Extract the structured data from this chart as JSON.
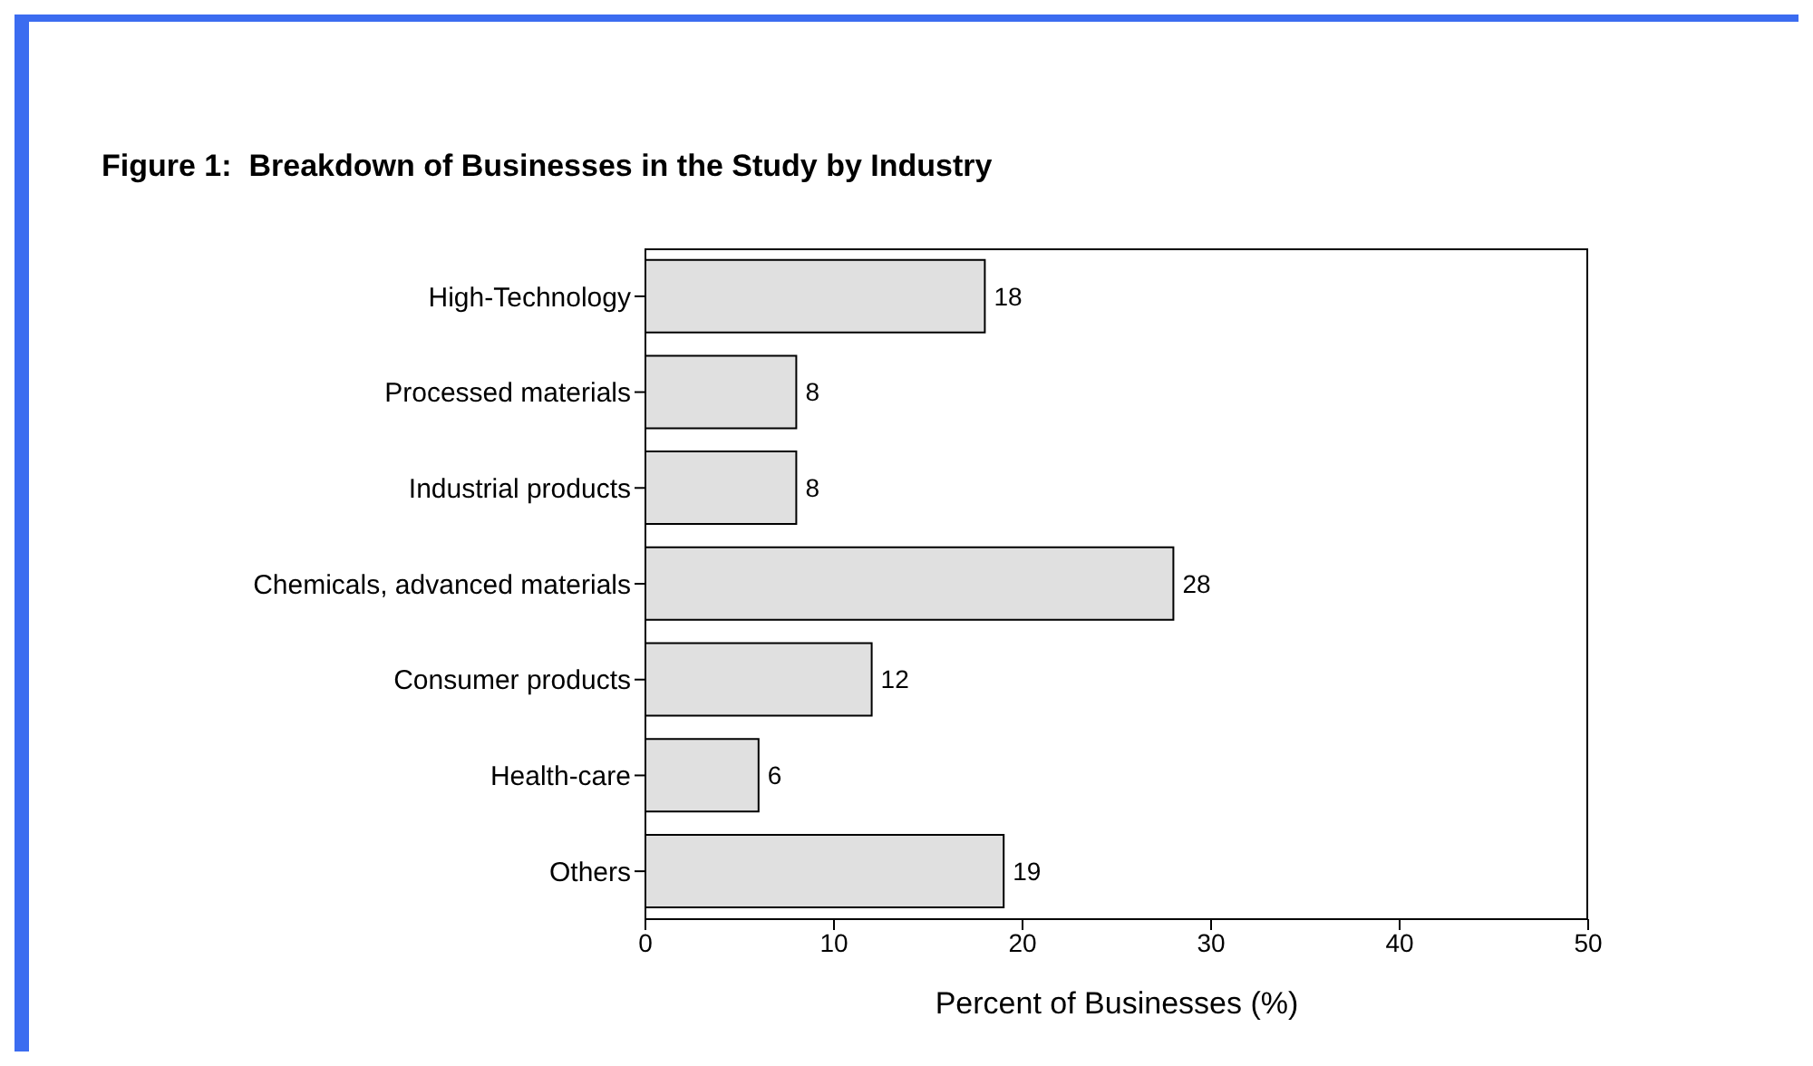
{
  "chart_data": {
    "type": "bar",
    "orientation": "horizontal",
    "title": "Figure 1:  Breakdown of Businesses in the Study by Industry",
    "xlabel": "Percent of Businesses (%)",
    "categories": [
      "High-Technology",
      "Processed materials",
      "Industrial products",
      "Chemicals, advanced materials",
      "Consumer products",
      "Health-care",
      "Others"
    ],
    "values": [
      18,
      8,
      8,
      28,
      12,
      6,
      19
    ],
    "color": "#e0e0e0",
    "xlim": [
      0,
      50
    ],
    "xticks": [
      0,
      10,
      20,
      30,
      40,
      50
    ],
    "data_labels": true,
    "grid": false,
    "legend": false
  }
}
